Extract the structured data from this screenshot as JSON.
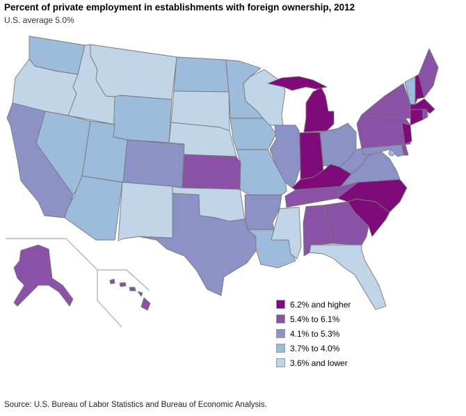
{
  "title": "Percent of private employment in establishments with foreign ownership, 2012",
  "subtitle": "U.S. average 5.0%",
  "source": "Source: U.S. Bureau of Labor Statistics and Bureau of Economic Analysis.",
  "legend": [
    {
      "label": "6.2% and higher",
      "color": "#7f0a7a",
      "class": 5
    },
    {
      "label": "5.4% to 6.1%",
      "color": "#8a52a6",
      "class": 4
    },
    {
      "label": "4.1% to 5.3%",
      "color": "#8c91c6",
      "class": 3
    },
    {
      "label": "3.7% to 4.0%",
      "color": "#9dbbda",
      "class": 2
    },
    {
      "label": "3.6% and lower",
      "color": "#c1d5e8",
      "class": 1
    }
  ],
  "states": {
    "MI": 5,
    "IN": 5,
    "KY": 5,
    "NC": 5,
    "SC": 5,
    "NJ": 5,
    "CT": 5,
    "MA": 5,
    "NH": 5,
    "ME": 4,
    "NY": 4,
    "PA": 4,
    "RI": 4,
    "DE": 4,
    "KS": 4,
    "TN": 4,
    "AL": 4,
    "GA": 4,
    "AK": 4,
    "HI": 4,
    "CA": 3,
    "CO": 3,
    "TX": 3,
    "AR": 3,
    "IL": 3,
    "OH": 3,
    "WV": 3,
    "VA": 3,
    "MD": 3,
    "WA": 2,
    "NV": 2,
    "UT": 2,
    "AZ": 2,
    "WY": 2,
    "ND": 2,
    "MN": 2,
    "IA": 2,
    "MO": 2,
    "LA": 2,
    "VT": 2,
    "DC": 2,
    "OR": 1,
    "ID": 1,
    "MT": 1,
    "SD": 1,
    "NE": 1,
    "OK": 1,
    "NM": 1,
    "WI": 1,
    "MS": 1,
    "FL": 1
  }
}
